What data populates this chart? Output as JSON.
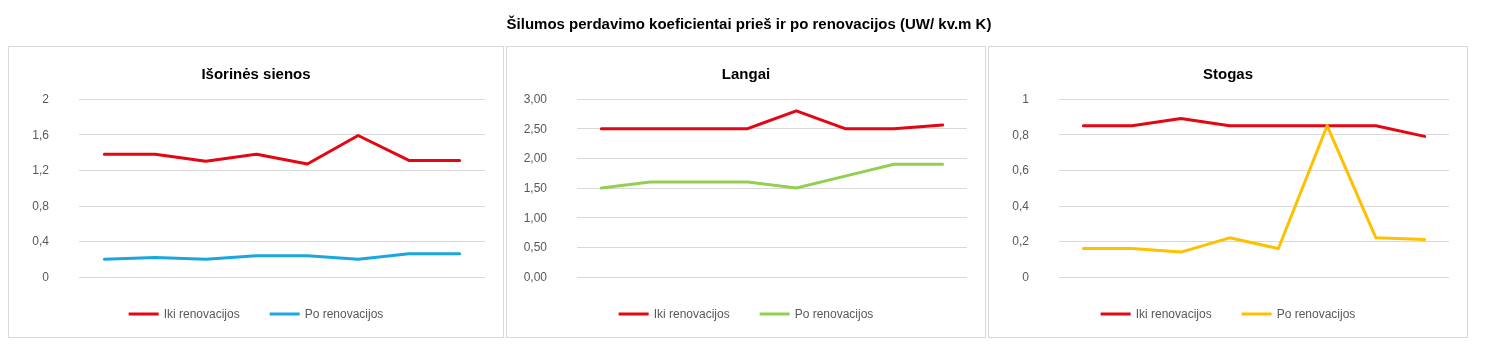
{
  "chart_data": [
    {
      "type": "line",
      "title": "Išorinės sienos",
      "annotations": [
        "Šilumos perdavimo koeficientai prieš ir po renovacijos (UW/ kv.m K)"
      ],
      "categories": [
        null,
        null,
        null,
        null,
        null,
        null,
        null,
        null
      ],
      "series": [
        {
          "name": "Iki renovacijos",
          "color": "#e30613",
          "values": [
            1.38,
            1.38,
            1.3,
            1.38,
            1.27,
            1.59,
            1.31,
            1.31
          ]
        },
        {
          "name": "Po renovacijos",
          "color": "#1aa7e0",
          "values": [
            0.2,
            0.22,
            0.2,
            0.24,
            0.24,
            0.2,
            0.26,
            0.26
          ]
        }
      ],
      "ylim": [
        0,
        2
      ],
      "yticks": [
        0,
        {
          "value": 0.4,
          "label": "0,4"
        },
        {
          "value": 0.8,
          "label": "0,8"
        },
        {
          "value": 1.2,
          "label": "1,2"
        },
        {
          "value": 1.6,
          "label": "1,6"
        },
        2
      ],
      "grid": "y",
      "legend": "bottom",
      "marker": "none"
    },
    {
      "type": "line",
      "title": "Langai",
      "categories": [
        null,
        null,
        null,
        null,
        null,
        null,
        null,
        null
      ],
      "series": [
        {
          "name": "Iki renovacijos",
          "color": "#e30613",
          "values": [
            2.5,
            2.5,
            2.5,
            2.5,
            2.8,
            2.5,
            2.5,
            2.56
          ]
        },
        {
          "name": "Po renovacijos",
          "color": "#92d050",
          "values": [
            1.5,
            1.6,
            1.6,
            1.6,
            1.5,
            1.7,
            1.9,
            1.9
          ]
        }
      ],
      "ylim": [
        0,
        3
      ],
      "yticks": [
        {
          "value": 0,
          "label": "0,00"
        },
        {
          "value": 0.5,
          "label": "0,50"
        },
        {
          "value": 1,
          "label": "1,00"
        },
        {
          "value": 1.5,
          "label": "1,50"
        },
        {
          "value": 2,
          "label": "2,00"
        },
        {
          "value": 2.5,
          "label": "2,50"
        },
        {
          "value": 3,
          "label": "3,00"
        }
      ],
      "grid": "y",
      "legend": "bottom",
      "marker": "none"
    },
    {
      "type": "line",
      "title": "Stogas",
      "categories": [
        null,
        null,
        null,
        null,
        null,
        null,
        null,
        null
      ],
      "series": [
        {
          "name": "Iki renovacijos",
          "color": "#e30613",
          "values": [
            0.85,
            0.85,
            0.89,
            0.85,
            0.85,
            0.85,
            0.85,
            0.79
          ]
        },
        {
          "name": "Po renovacijos",
          "color": "#ffc000",
          "values": [
            0.16,
            0.16,
            0.14,
            0.22,
            0.16,
            0.85,
            0.22,
            0.21
          ]
        }
      ],
      "ylim": [
        0,
        1
      ],
      "yticks": [
        0,
        {
          "value": 0.2,
          "label": "0,2"
        },
        {
          "value": 0.4,
          "label": "0,4"
        },
        {
          "value": 0.6,
          "label": "0,6"
        },
        {
          "value": 0.8,
          "label": "0,8"
        },
        1
      ],
      "grid": "y",
      "legend": "bottom",
      "marker": "none"
    }
  ]
}
